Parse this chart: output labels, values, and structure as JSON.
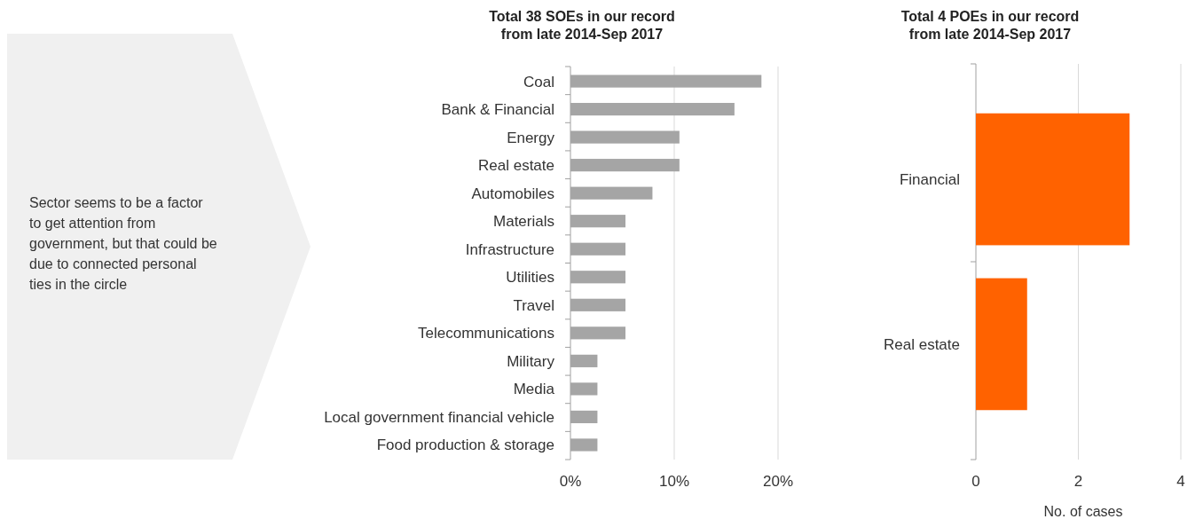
{
  "chart_data": [
    {
      "type": "other",
      "annotations": [
        "Sector seems to be a factor to get attention from government, but that could be due to connected personal ties in the circle"
      ]
    },
    {
      "type": "bar",
      "orientation": "horizontal",
      "title": "Total 38 SOEs in our record\nfrom late 2014-Sep 2017",
      "categories": [
        "Coal",
        "Bank & Financial",
        "Energy",
        "Real estate",
        "Automobiles",
        "Materials",
        "Infrastructure",
        "Utilities",
        "Travel",
        "Telecommunications",
        "Military",
        "Media",
        "Local government financial vehicle",
        "Food production & storage"
      ],
      "values": [
        18.4,
        15.8,
        10.5,
        10.5,
        7.9,
        5.3,
        5.3,
        5.3,
        5.3,
        5.3,
        2.6,
        2.6,
        2.6,
        2.6
      ],
      "color": "#a5a5a5",
      "xlim": [
        0,
        20
      ],
      "xticks": [
        {
          "value": 0,
          "label": "0%"
        },
        {
          "value": 10,
          "label": "10%"
        },
        {
          "value": 20,
          "label": "20%"
        }
      ],
      "grid": "x"
    },
    {
      "type": "bar",
      "orientation": "horizontal",
      "title": "Total 4 POEs in our record\nfrom late 2014-Sep 2017",
      "xlabel": "No. of cases",
      "categories": [
        "Financial",
        "Real estate"
      ],
      "values": [
        3,
        1
      ],
      "color": "#ff6200",
      "xlim": [
        0,
        4
      ],
      "xticks": [
        0,
        2,
        4
      ],
      "grid": "x"
    }
  ]
}
